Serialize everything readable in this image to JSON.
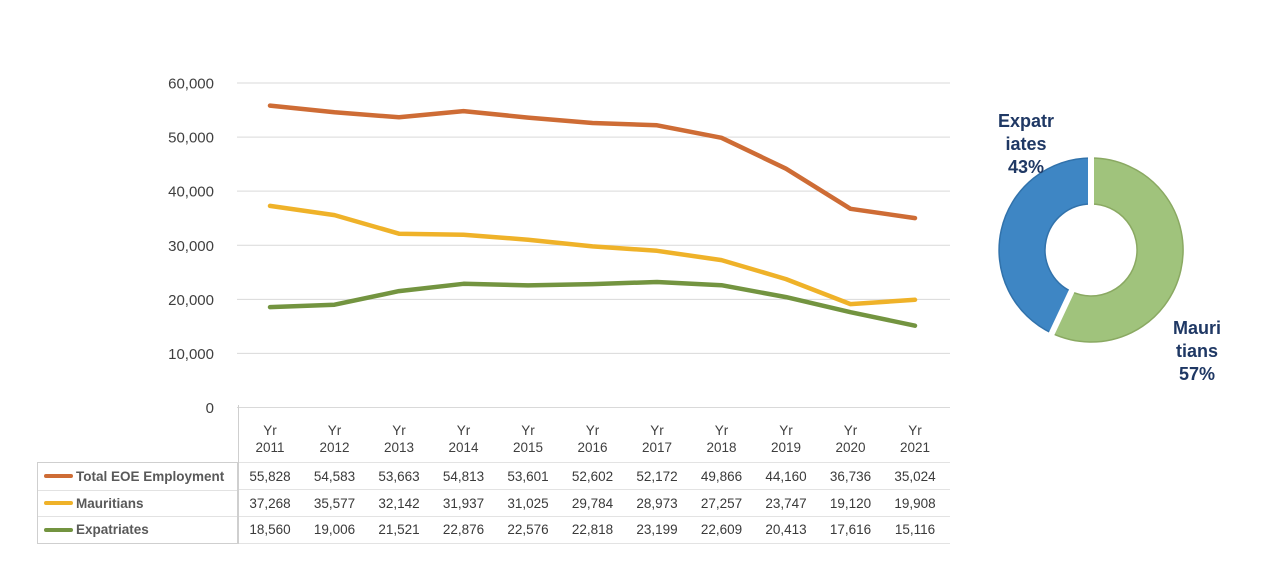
{
  "chart_data": [
    {
      "type": "line",
      "title": "",
      "x_prefix": "Yr",
      "categories": [
        "2011",
        "2012",
        "2013",
        "2014",
        "2015",
        "2016",
        "2017",
        "2018",
        "2019",
        "2020",
        "2021"
      ],
      "series": [
        {
          "name": "Total EOE Employment",
          "color": "#CE6C35",
          "values": [
            55828,
            54583,
            53663,
            54813,
            53601,
            52602,
            52172,
            49866,
            44160,
            36736,
            35024
          ]
        },
        {
          "name": "Mauritians",
          "color": "#EFB229",
          "values": [
            37268,
            35577,
            32142,
            31937,
            31025,
            29784,
            28973,
            27257,
            23747,
            19120,
            19908
          ]
        },
        {
          "name": "Expatriates",
          "color": "#739440",
          "values": [
            18560,
            19006,
            21521,
            22876,
            22576,
            22818,
            23199,
            22609,
            20413,
            17616,
            15116
          ]
        }
      ],
      "ylim": [
        0,
        60000
      ],
      "y_ticks": [
        "60,000",
        "50,000",
        "40,000",
        "30,000",
        "20,000",
        "10,000",
        "0"
      ],
      "grid": true,
      "gridline_color": "#d9d9d9",
      "axis_text_color": "#3f3f3f",
      "legend_position": "table-left"
    },
    {
      "type": "pie",
      "donut": true,
      "slices": [
        {
          "name": "Mauritians",
          "pct": 57,
          "color": "#A0C37C",
          "edge_color": "#8AA962",
          "label_lines": [
            "Mauri",
            "tians",
            "57%"
          ]
        },
        {
          "name": "Expatriates",
          "pct": 43,
          "color": "#3E86C4",
          "edge_color": "#3172AB",
          "label_lines": [
            "Expatr",
            "iates",
            "43%"
          ]
        }
      ],
      "label_color": "#1F3864",
      "legend_position": "none"
    }
  ]
}
